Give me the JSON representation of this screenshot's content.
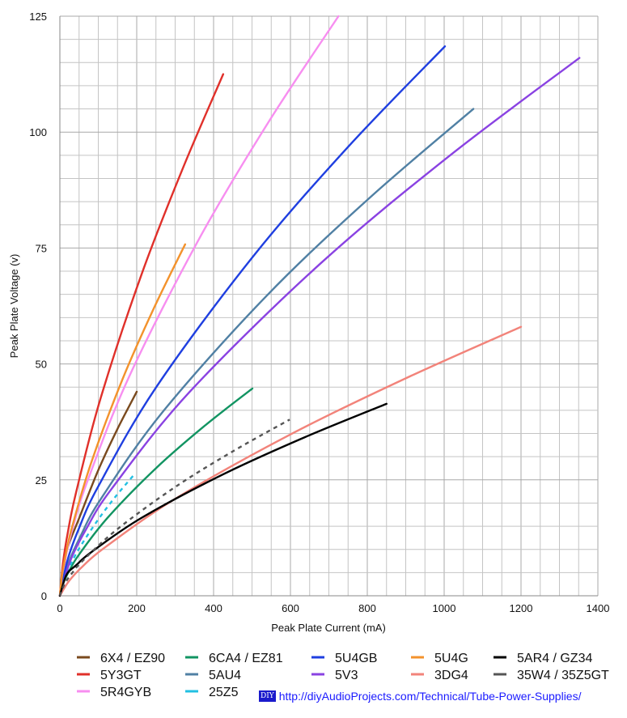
{
  "chart_data": {
    "type": "line",
    "xlabel": "Peak Plate Current (mA)",
    "ylabel": "Peak Plate Voltage (v)",
    "xlim": [
      0,
      1400
    ],
    "ylim": [
      0,
      125
    ],
    "xticks": [
      0,
      200,
      400,
      600,
      800,
      1000,
      1200,
      1400
    ],
    "yticks": [
      0,
      25,
      50,
      75,
      100,
      125
    ],
    "grid": {
      "on": true,
      "x_minor_step": 50,
      "y_minor_step": 5
    },
    "legend_placement": "bottom",
    "series": [
      {
        "name": "6X4 / EZ90",
        "color": "#7a4a1e",
        "dashed": false,
        "x": [
          0,
          4,
          10,
          20,
          50,
          100,
          150,
          200
        ],
        "y": [
          0,
          2.8,
          5.4,
          10.3,
          16.7,
          27.1,
          36.0,
          44
        ]
      },
      {
        "name": "5Y3GT",
        "color": "#e0302a",
        "dashed": false,
        "x": [
          0,
          8.5,
          21,
          42.5,
          106,
          212.5,
          319,
          425
        ],
        "y": [
          0,
          7.3,
          13.8,
          22.4,
          42.6,
          69.3,
          92.0,
          112.5
        ]
      },
      {
        "name": "5R4GYB",
        "color": "#f78ef0",
        "dashed": false,
        "x": [
          0,
          14.5,
          36,
          72.5,
          181,
          362.5,
          544,
          725
        ],
        "y": [
          0,
          8.1,
          15.4,
          24.9,
          47.4,
          77.0,
          102.3,
          125
        ]
      },
      {
        "name": "6CA4 / EZ81",
        "color": "#129462",
        "dashed": false,
        "x": [
          0,
          10,
          25,
          50,
          125,
          250,
          376,
          501
        ],
        "y": [
          0,
          2.9,
          5.5,
          8.9,
          16.9,
          27.5,
          36.6,
          44.7
        ]
      },
      {
        "name": "5AU4",
        "color": "#5080a4",
        "dashed": false,
        "x": [
          0,
          21.5,
          54,
          107.6,
          269,
          538,
          807,
          1076
        ],
        "y": [
          0,
          6.8,
          12.9,
          21.0,
          39.8,
          64.7,
          85.9,
          105
        ]
      },
      {
        "name": "25Z5",
        "color": "#22c0e2",
        "dashed": true,
        "x": [
          0,
          3.8,
          9.6,
          19.2,
          48,
          96,
          144,
          192
        ],
        "y": [
          0,
          1.7,
          3.2,
          5.2,
          9.9,
          16.0,
          21.3,
          26
        ]
      },
      {
        "name": "5U4GB",
        "color": "#1f3fe0",
        "dashed": false,
        "x": [
          0,
          20,
          50,
          100,
          250,
          501,
          751,
          1002
        ],
        "y": [
          0,
          7.7,
          14.6,
          23.6,
          44.9,
          73.0,
          96.9,
          118.5
        ]
      },
      {
        "name": "5V3",
        "color": "#8a42e2",
        "dashed": false,
        "x": [
          0,
          27,
          68,
          135,
          338,
          676,
          1014,
          1352
        ],
        "y": [
          0,
          7.5,
          14.3,
          23.1,
          44.0,
          71.5,
          94.9,
          116
        ]
      },
      {
        "name": "5U4G",
        "color": "#f3922c",
        "dashed": false,
        "x": [
          0,
          6.5,
          16.3,
          32.6,
          81.5,
          163,
          244.5,
          326
        ],
        "y": [
          0,
          4.9,
          9.3,
          15.1,
          28.7,
          46.7,
          62.0,
          75.8
        ]
      },
      {
        "name": "3DG4",
        "color": "#f2837a",
        "dashed": false,
        "x": [
          0,
          24,
          60,
          120,
          300,
          600,
          900,
          1200
        ],
        "y": [
          0,
          3.2,
          6.4,
          10.6,
          20.9,
          34.8,
          46.9,
          58
        ]
      },
      {
        "name": "5AR4 / GZ34",
        "color": "#000000",
        "dashed": false,
        "x": [
          0,
          17,
          42.5,
          85,
          212.5,
          425,
          637.5,
          850
        ],
        "y": [
          0,
          4.5,
          6.6,
          9.6,
          16.8,
          26.2,
          34.2,
          41.4
        ]
      },
      {
        "name": "35W4 / 35Z5GT",
        "color": "#555555",
        "dashed": true,
        "x": [
          0,
          12,
          30,
          60,
          150,
          299,
          449,
          598
        ],
        "y": [
          0,
          2.5,
          4.7,
          7.6,
          14.4,
          23.4,
          31.1,
          38
        ]
      }
    ]
  },
  "legend_order": [
    "6X4 / EZ90",
    "6CA4 / EZ81",
    "5U4GB",
    "5U4G",
    "5AR4 / GZ34",
    "5Y3GT",
    "5AU4",
    "5V3",
    "3DG4",
    "35W4 / 35Z5GT",
    "5R4GYB",
    "25Z5"
  ],
  "footer": {
    "badge": "DIY",
    "link": "http://diyAudioProjects.com/Technical/Tube-Power-Supplies/"
  }
}
